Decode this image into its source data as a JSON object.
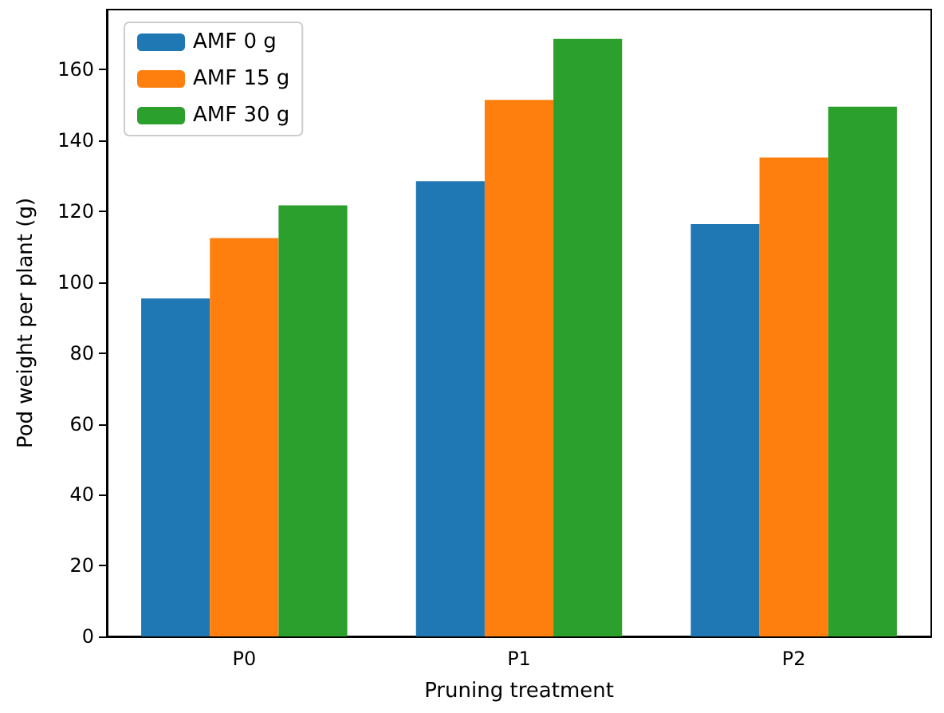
{
  "chart_data": {
    "type": "bar",
    "xlabel": "Pruning treatment",
    "ylabel": "Pod weight per plant (g)",
    "categories": [
      "P0",
      "P1",
      "P2"
    ],
    "series": [
      {
        "name": "AMF 0 g",
        "color": "#1f77b4",
        "values": [
          95.4,
          128.5,
          116.4
        ]
      },
      {
        "name": "AMF 15 g",
        "color": "#ff7f0e",
        "values": [
          112.5,
          151.5,
          135.2
        ]
      },
      {
        "name": "AMF 30 g",
        "color": "#2ca02c",
        "values": [
          121.7,
          168.7,
          149.6
        ]
      }
    ],
    "ylim": [
      0,
      177
    ],
    "yticks": [
      0,
      20,
      40,
      60,
      80,
      100,
      120,
      140,
      160
    ],
    "grid": false,
    "legend": "top left"
  }
}
